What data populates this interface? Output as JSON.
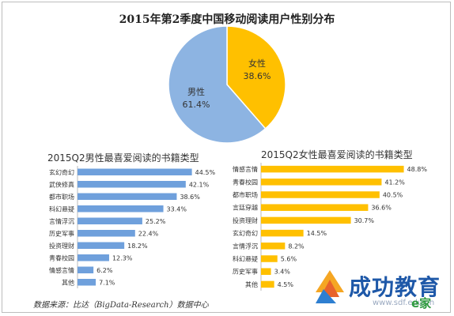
{
  "title": "2015年第2季度中国移动阅读用户性别分布",
  "chart_data": [
    {
      "type": "pie",
      "labels": [
        "女性",
        "男性"
      ],
      "values": [
        38.6,
        61.4
      ],
      "value_labels": [
        "38.6%",
        "61.4%"
      ],
      "colors": [
        "#ffc000",
        "#8db4e2"
      ]
    },
    {
      "type": "bar",
      "orientation": "horizontal",
      "title": "2015Q2男性最喜爱阅读的书籍类型",
      "categories": [
        "玄幻奇幻",
        "武侠修真",
        "都市职场",
        "科幻悬疑",
        "言情浮沉",
        "历史军事",
        "投资理财",
        "青春校园",
        "情感言情",
        "其他"
      ],
      "values": [
        44.5,
        42.1,
        38.6,
        33.4,
        25.2,
        22.4,
        18.2,
        12.3,
        6.2,
        7.1
      ],
      "value_labels": [
        "44.5%",
        "42.1%",
        "38.6%",
        "33.4%",
        "25.2%",
        "22.4%",
        "18.2%",
        "12.3%",
        "6.2%",
        "7.1%"
      ],
      "unit": "%",
      "color": "#6fa0dc"
    },
    {
      "type": "bar",
      "orientation": "horizontal",
      "title": "2015Q2女性最喜爱阅读的书籍类型",
      "categories": [
        "情感言情",
        "青春校园",
        "都市职场",
        "言廷穿越",
        "投资理财",
        "玄幻奇幻",
        "言情浮沉",
        "科幻悬疑",
        "历史军事",
        "其他"
      ],
      "values": [
        48.8,
        41.2,
        40.5,
        36.6,
        30.7,
        14.5,
        8.2,
        5.6,
        3.4,
        4.5
      ],
      "value_labels": [
        "48.8%",
        "41.2%",
        "40.5%",
        "36.6%",
        "30.7%",
        "14.5%",
        "8.2%",
        "5.6%",
        "3.4%",
        "4.5%"
      ],
      "unit": "%",
      "color": "#ffc000"
    }
  ],
  "source": "数据来源：比达（BigData-Research）数据中心",
  "brand": {
    "name": "成功教育",
    "url": "www.sdf.edu.cn",
    "sub": "e家"
  }
}
